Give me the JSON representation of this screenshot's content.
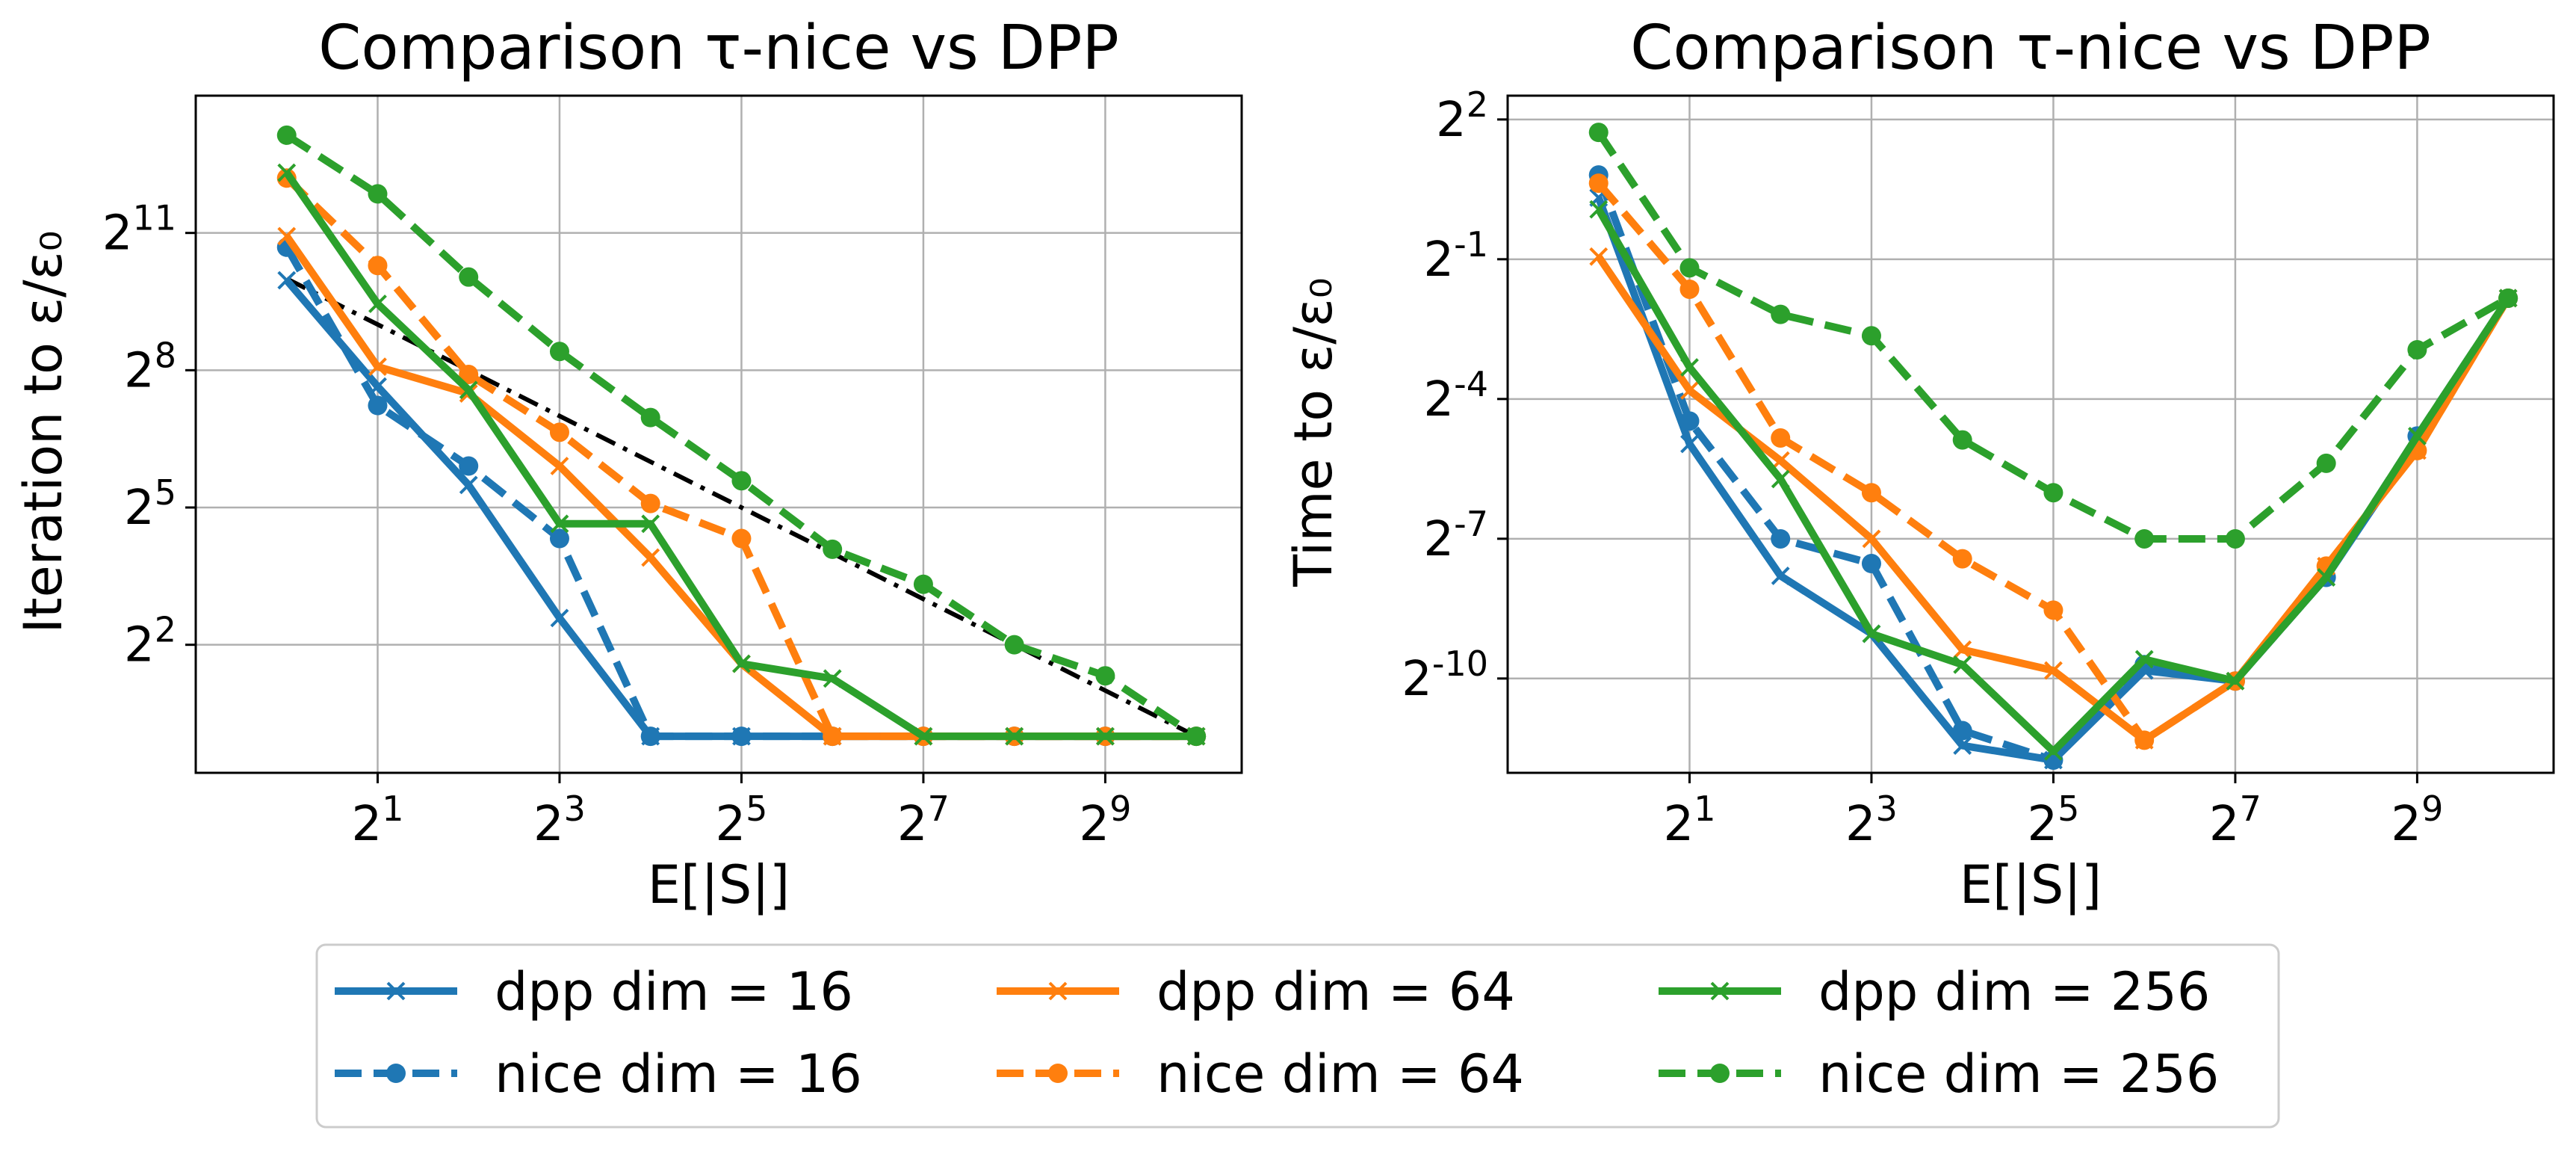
{
  "chart_data": [
    {
      "type": "line",
      "title": "Comparison τ-nice vs DPP",
      "xlabel": "E[|S|]",
      "ylabel": "Iteration to ε/ε₀",
      "xscale": "log2",
      "yscale": "log2",
      "xlim": [
        0.5,
        1448
      ],
      "ylim": [
        0.575,
        16384
      ],
      "xticks": [
        2,
        8,
        32,
        128,
        512
      ],
      "xtick_labels": [
        "2^1",
        "2^3",
        "2^5",
        "2^7",
        "2^9"
      ],
      "yticks": [
        4,
        32,
        256,
        2048
      ],
      "ytick_labels": [
        "2^2",
        "2^5",
        "2^8",
        "2^11"
      ],
      "grid": true,
      "x": [
        1,
        2,
        4,
        8,
        16,
        32,
        64,
        128,
        256,
        512,
        1024
      ],
      "series": [
        {
          "name": "dpp dim = 16",
          "color": "#1f77b4",
          "style": "solid",
          "marker": "x",
          "values": [
            1000,
            200,
            45,
            6,
            1,
            1,
            1,
            1,
            1,
            1,
            1
          ]
        },
        {
          "name": "nice dim = 16",
          "color": "#1f77b4",
          "style": "dashed",
          "marker": "o",
          "values": [
            1650,
            150,
            60,
            20,
            1,
            1,
            1,
            1,
            1,
            1,
            1
          ]
        },
        {
          "name": "dpp dim = 64",
          "color": "#ff7f0e",
          "style": "solid",
          "marker": "x",
          "values": [
            1950,
            270,
            180,
            60,
            15,
            3,
            1,
            1,
            1,
            1,
            1
          ]
        },
        {
          "name": "nice dim = 64",
          "color": "#ff7f0e",
          "style": "dashed",
          "marker": "o",
          "values": [
            4700,
            1250,
            240,
            100,
            34,
            20,
            1,
            1,
            1,
            1,
            1
          ]
        },
        {
          "name": "dpp dim = 256",
          "color": "#2ca02c",
          "style": "solid",
          "marker": "x",
          "values": [
            5100,
            700,
            190,
            25,
            25,
            3,
            2.4,
            1,
            1,
            1,
            1
          ]
        },
        {
          "name": "nice dim = 256",
          "color": "#2ca02c",
          "style": "dashed",
          "marker": "o",
          "values": [
            9000,
            3700,
            1050,
            340,
            125,
            48,
            17,
            10,
            4,
            2.5,
            1
          ]
        }
      ],
      "reference_line": {
        "color": "#000000",
        "style": "dashdot",
        "x": [
          1,
          1024
        ],
        "values": [
          1024,
          1
        ]
      }
    },
    {
      "type": "line",
      "title": "Comparison τ-nice vs DPP",
      "xlabel": "E[|S|]",
      "ylabel": "Time to ε/ε₀",
      "xscale": "log2",
      "yscale": "log2",
      "xlim": [
        0.5,
        1448
      ],
      "ylim": [
        0.00024,
        5.7
      ],
      "xticks": [
        2,
        8,
        32,
        128,
        512
      ],
      "xtick_labels": [
        "2^1",
        "2^3",
        "2^5",
        "2^7",
        "2^9"
      ],
      "yticks": [
        0.0009765625,
        0.0078125,
        0.0625,
        0.5,
        4
      ],
      "ytick_labels": [
        "2^-10",
        "2^-7",
        "2^-4",
        "2^-1",
        "2^2"
      ],
      "grid": true,
      "x": [
        1,
        2,
        4,
        8,
        16,
        32,
        64,
        128,
        256,
        512,
        1024
      ],
      "series": [
        {
          "name": "dpp dim = 16",
          "color": "#1f77b4",
          "style": "solid",
          "marker": "x",
          "values": [
            1.25,
            0.032,
            0.0045,
            0.0019,
            0.00036,
            0.00029,
            0.0011,
            0.00094,
            0.0044,
            0.033,
            0.28
          ]
        },
        {
          "name": "nice dim = 16",
          "color": "#1f77b4",
          "style": "dashed",
          "marker": "o",
          "values": [
            1.75,
            0.045,
            0.0078,
            0.0054,
            0.00045,
            0.00029,
            0.0012,
            0.00094,
            0.0044,
            0.036,
            0.28
          ]
        },
        {
          "name": "dpp dim = 64",
          "color": "#ff7f0e",
          "style": "solid",
          "marker": "x",
          "values": [
            0.52,
            0.071,
            0.025,
            0.0078,
            0.0015,
            0.0011,
            0.00039,
            0.00094,
            0.0052,
            0.029,
            0.28
          ]
        },
        {
          "name": "nice dim = 64",
          "color": "#ff7f0e",
          "style": "dashed",
          "marker": "o",
          "values": [
            1.55,
            0.32,
            0.035,
            0.0155,
            0.0058,
            0.0027,
            0.00039,
            0.00094,
            0.0052,
            0.029,
            0.28
          ]
        },
        {
          "name": "dpp dim = 256",
          "color": "#2ca02c",
          "style": "solid",
          "marker": "x",
          "values": [
            1.05,
            0.1,
            0.019,
            0.0019,
            0.0012,
            0.00033,
            0.0013,
            0.00094,
            0.0044,
            0.036,
            0.28
          ]
        },
        {
          "name": "nice dim = 256",
          "color": "#2ca02c",
          "style": "dashed",
          "marker": "o",
          "values": [
            3.3,
            0.44,
            0.22,
            0.16,
            0.034,
            0.0155,
            0.0078,
            0.0078,
            0.024,
            0.13,
            0.28
          ]
        }
      ]
    }
  ],
  "legend": {
    "placement": "bottom-center",
    "columns": 3,
    "entries": [
      "dpp dim = 16",
      "nice dim = 16",
      "dpp dim = 64",
      "nice dim = 64",
      "dpp dim = 256",
      "nice dim = 256"
    ]
  }
}
